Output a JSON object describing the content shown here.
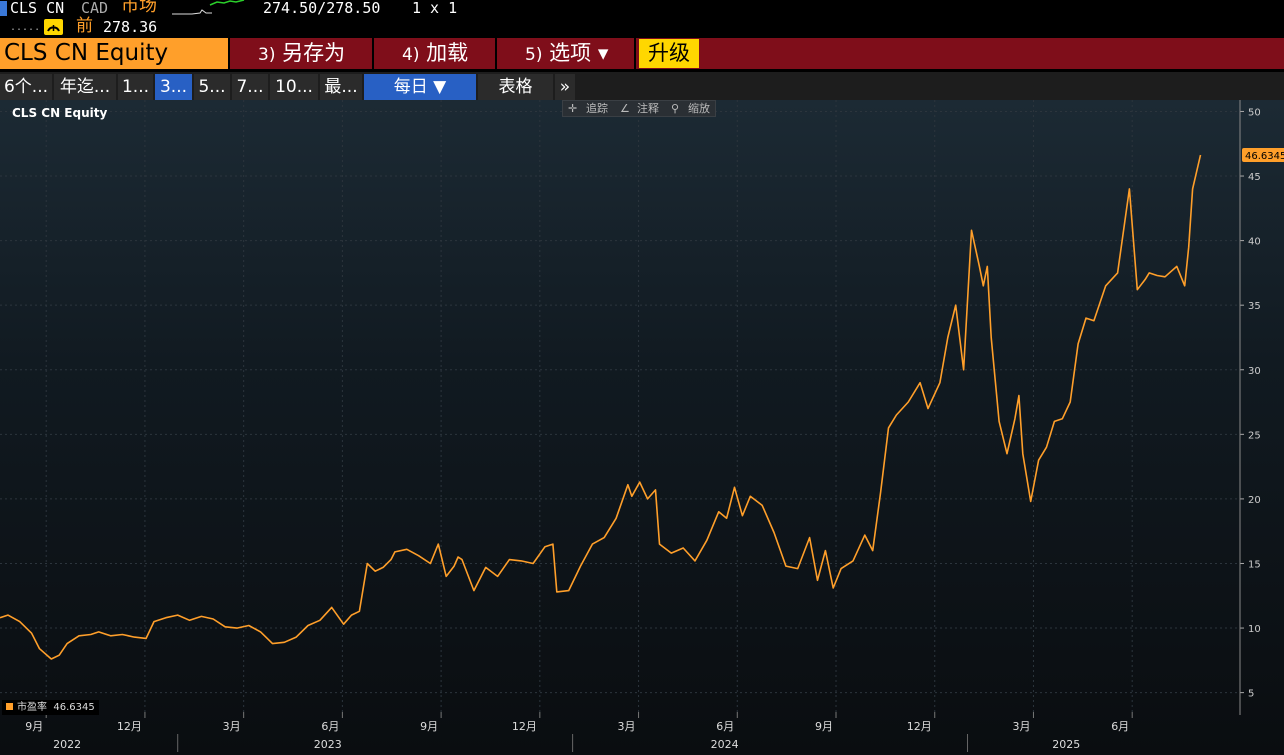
{
  "header": {
    "ticker": "CLS CN",
    "currency": "CAD",
    "market_label": "市场",
    "bid_ask": "274.50/278.50",
    "size": "1 x 1",
    "prev_label": "前",
    "prev_value": "278.36"
  },
  "menu": {
    "security": "CLS CN Equity",
    "items": [
      {
        "num": "3)",
        "label": "另存为"
      },
      {
        "num": "4)",
        "label": "加载"
      },
      {
        "num": "5)",
        "label": "选项 ▾"
      }
    ],
    "upgrade": "升级"
  },
  "tabs": [
    "6个...",
    "年迄...",
    "1...",
    "3...",
    "5...",
    "7...",
    "10...",
    "最...",
    "每日 ▼",
    "表格",
    "»"
  ],
  "active_tab": 3,
  "tools": [
    "追踪",
    "注释",
    "缩放"
  ],
  "colors": {
    "line": "#ff9f2a",
    "menu_bg": "#7f0e1a",
    "accent": "#2860c4",
    "upgrade": "#ffd700"
  },
  "chart_data": {
    "type": "line",
    "title": "CLS CN Equity",
    "ylim": [
      3.5,
      50.5
    ],
    "y_ticks": [
      5,
      10,
      15,
      20,
      25,
      30,
      35,
      40,
      45,
      50
    ],
    "month_ticks": [
      {
        "label": "9月",
        "t": 2022.667
      },
      {
        "label": "12月",
        "t": 2022.917
      },
      {
        "label": "3月",
        "t": 2023.167
      },
      {
        "label": "6月",
        "t": 2023.417
      },
      {
        "label": "9月",
        "t": 2023.667
      },
      {
        "label": "12月",
        "t": 2023.917
      },
      {
        "label": "3月",
        "t": 2024.167
      },
      {
        "label": "6月",
        "t": 2024.417
      },
      {
        "label": "9月",
        "t": 2024.667
      },
      {
        "label": "12月",
        "t": 2024.917
      },
      {
        "label": "3月",
        "t": 2025.167
      },
      {
        "label": "6月",
        "t": 2025.417
      }
    ],
    "year_labels": [
      {
        "label": "2022",
        "t": 2022.72
      },
      {
        "label": "2023",
        "t": 2023.38
      },
      {
        "label": "2024",
        "t": 2024.385
      },
      {
        "label": "2025",
        "t": 2025.25
      }
    ],
    "xlim": [
      2022.55,
      2025.69
    ],
    "series": [
      {
        "name": "市盈率",
        "last_value": "46.6345",
        "t": [
          2022.55,
          2022.57,
          2022.6,
          2022.63,
          2022.65,
          2022.68,
          2022.7,
          2022.72,
          2022.75,
          2022.78,
          2022.8,
          2022.83,
          2022.86,
          2022.89,
          2022.92,
          2022.94,
          2022.97,
          2023.0,
          2023.03,
          2023.06,
          2023.09,
          2023.12,
          2023.15,
          2023.18,
          2023.21,
          2023.24,
          2023.27,
          2023.3,
          2023.33,
          2023.36,
          2023.39,
          2023.42,
          2023.44,
          2023.46,
          2023.48,
          2023.5,
          2023.52,
          2023.54,
          2023.55,
          2023.58,
          2023.61,
          2023.64,
          2023.66,
          2023.68,
          2023.7,
          2023.71,
          2023.72,
          2023.75,
          2023.78,
          2023.81,
          2023.84,
          2023.87,
          2023.9,
          2023.93,
          2023.95,
          2023.96,
          2023.99,
          2024.02,
          2024.05,
          2024.08,
          2024.11,
          2024.14,
          2024.15,
          2024.17,
          2024.19,
          2024.21,
          2024.22,
          2024.25,
          2024.28,
          2024.31,
          2024.34,
          2024.37,
          2024.39,
          2024.41,
          2024.43,
          2024.45,
          2024.48,
          2024.51,
          2024.54,
          2024.57,
          2024.6,
          2024.62,
          2024.64,
          2024.66,
          2024.68,
          2024.71,
          2024.74,
          2024.76,
          2024.78,
          2024.8,
          2024.82,
          2024.85,
          2024.88,
          2024.9,
          2024.93,
          2024.95,
          2024.97,
          2024.99,
          2025.01,
          2025.03,
          2025.04,
          2025.05,
          2025.06,
          2025.08,
          2025.1,
          2025.12,
          2025.13,
          2025.14,
          2025.16,
          2025.18,
          2025.2,
          2025.22,
          2025.24,
          2025.26,
          2025.28,
          2025.3,
          2025.32,
          2025.35,
          2025.38,
          2025.41,
          2025.43,
          2025.45,
          2025.46,
          2025.48,
          2025.5,
          2025.53,
          2025.55,
          2025.56,
          2025.57,
          2025.59
        ],
        "values": [
          10.8,
          11.0,
          10.5,
          9.6,
          8.4,
          7.6,
          7.9,
          8.8,
          9.4,
          9.5,
          9.7,
          9.4,
          9.5,
          9.3,
          9.2,
          10.5,
          10.8,
          11.0,
          10.6,
          10.9,
          10.7,
          10.1,
          10.0,
          10.2,
          9.7,
          8.8,
          8.9,
          9.3,
          10.2,
          10.6,
          11.6,
          10.3,
          11.0,
          11.3,
          15.0,
          14.4,
          14.7,
          15.3,
          15.9,
          16.1,
          15.6,
          15.0,
          16.5,
          14.0,
          14.8,
          15.5,
          15.3,
          12.9,
          14.7,
          14.0,
          15.3,
          15.2,
          15.0,
          16.3,
          16.5,
          12.8,
          12.9,
          14.8,
          16.5,
          17.0,
          18.5,
          21.1,
          20.2,
          21.3,
          20.0,
          20.7,
          16.5,
          15.8,
          16.2,
          15.2,
          16.8,
          19.0,
          18.5,
          20.9,
          18.7,
          20.2,
          19.5,
          17.4,
          14.8,
          14.6,
          17.0,
          13.7,
          16.0,
          13.1,
          14.6,
          15.2,
          17.2,
          16.0,
          20.5,
          25.5,
          26.5,
          27.5,
          29.0,
          27.0,
          29.0,
          32.5,
          35.0,
          30.0,
          40.8,
          38.0,
          36.5,
          38.0,
          32.5,
          26.0,
          23.5,
          26.2,
          28.0,
          23.5,
          19.8,
          23.0,
          24.0,
          26.0,
          26.2,
          27.5,
          32.0,
          34.0,
          33.8,
          36.5,
          37.5,
          44.0,
          36.2,
          37.0,
          37.5,
          37.3,
          37.2,
          38.0,
          36.5,
          39.5,
          44.0,
          46.63
        ]
      }
    ]
  }
}
